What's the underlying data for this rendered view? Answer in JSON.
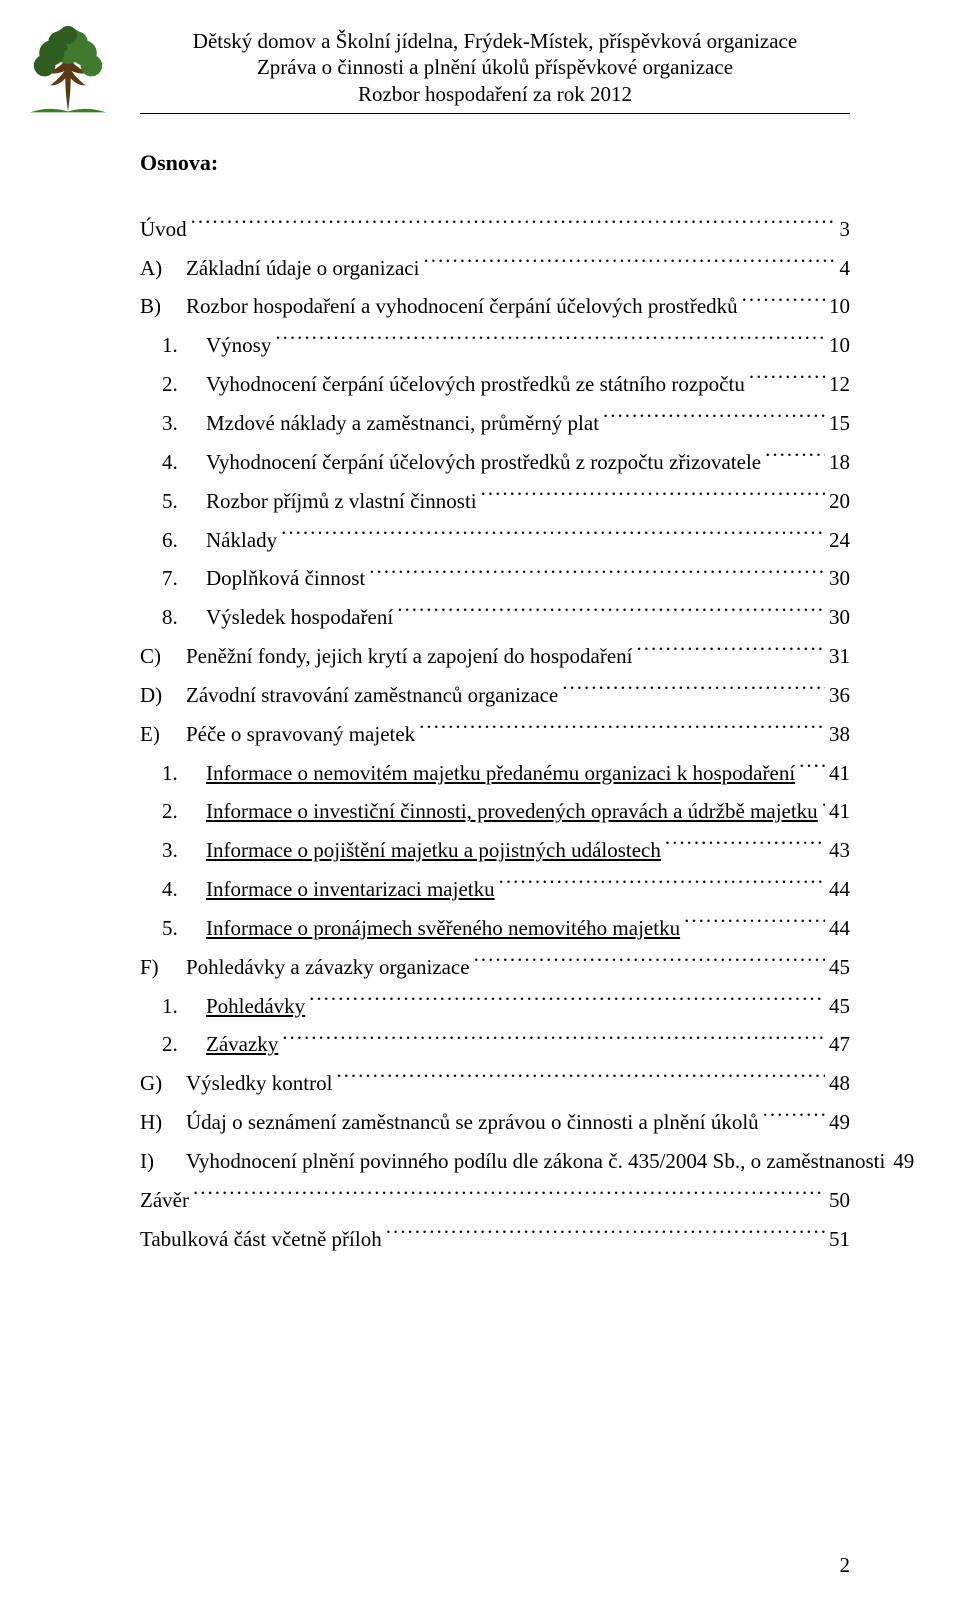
{
  "header": {
    "line1": "Dětský domov a Školní jídelna, Frýdek-Místek, příspěvková organizace",
    "line2": "Zpráva o činnosti a plnění úkolů příspěvkové organizace",
    "line3": "Rozbor hospodaření za rok 2012"
  },
  "logo": {
    "trunk_color": "#5a3a14",
    "canopy_color": "#3f7a2e",
    "canopy_dark": "#2e5d1f"
  },
  "section_title": "Osnova:",
  "toc": [
    {
      "level": "top",
      "marker": "",
      "text": "Úvod",
      "page": "3",
      "underline": false
    },
    {
      "level": "alpha",
      "marker": "A)",
      "text": "Základní údaje o organizaci",
      "page": "4",
      "underline": false
    },
    {
      "level": "alpha",
      "marker": "B)",
      "text": "Rozbor hospodaření a vyhodnocení čerpání účelových prostředků",
      "page": "10",
      "underline": false
    },
    {
      "level": "num",
      "marker": "1.",
      "text": "Výnosy",
      "page": "10",
      "underline": false
    },
    {
      "level": "num",
      "marker": "2.",
      "text": "Vyhodnocení čerpání účelových prostředků ze státního rozpočtu",
      "page": "12",
      "underline": false
    },
    {
      "level": "num",
      "marker": "3.",
      "text": "Mzdové náklady a zaměstnanci, průměrný plat",
      "page": "15",
      "underline": false
    },
    {
      "level": "num",
      "marker": "4.",
      "text": "Vyhodnocení čerpání účelových prostředků z rozpočtu zřizovatele",
      "page": "18",
      "underline": false
    },
    {
      "level": "num",
      "marker": "5.",
      "text": "Rozbor příjmů z vlastní činnosti",
      "page": "20",
      "underline": false
    },
    {
      "level": "num",
      "marker": "6.",
      "text": "Náklady",
      "page": "24",
      "underline": false
    },
    {
      "level": "num",
      "marker": "7.",
      "text": "Doplňková činnost",
      "page": "30",
      "underline": false
    },
    {
      "level": "num",
      "marker": "8.",
      "text": "Výsledek hospodaření",
      "page": "30",
      "underline": false
    },
    {
      "level": "alpha",
      "marker": "C)",
      "text": "Peněžní fondy, jejich krytí a zapojení do hospodaření",
      "page": "31",
      "underline": false
    },
    {
      "level": "alpha",
      "marker": "D)",
      "text": "Závodní stravování zaměstnanců organizace",
      "page": "36",
      "underline": false
    },
    {
      "level": "alpha",
      "marker": "E)",
      "text": "Péče o spravovaný majetek",
      "page": "38",
      "underline": false
    },
    {
      "level": "num",
      "marker": "1.",
      "text": "Informace o nemovitém majetku předanému organizaci k hospodaření",
      "page": "41",
      "underline": true
    },
    {
      "level": "num",
      "marker": "2.",
      "text": "Informace o investiční činnosti, provedených opravách a údržbě majetku",
      "page": "41",
      "underline": true
    },
    {
      "level": "num",
      "marker": "3.",
      "text": "Informace o pojištění majetku a pojistných událostech",
      "page": "43",
      "underline": true
    },
    {
      "level": "num",
      "marker": "4.",
      "text": "Informace o inventarizaci majetku",
      "page": "44",
      "underline": true
    },
    {
      "level": "num",
      "marker": "5.",
      "text": "Informace o pronájmech svěřeného nemovitého majetku",
      "page": "44",
      "underline": true
    },
    {
      "level": "alpha",
      "marker": "F)",
      "text": "Pohledávky a závazky organizace",
      "page": "45",
      "underline": false
    },
    {
      "level": "num",
      "marker": "1.",
      "text": "Pohledávky",
      "page": "45",
      "underline": true
    },
    {
      "level": "num",
      "marker": "2.",
      "text": "Závazky",
      "page": "47",
      "underline": true
    },
    {
      "level": "alpha",
      "marker": "G)",
      "text": "Výsledky kontrol",
      "page": "48",
      "underline": false
    },
    {
      "level": "alpha",
      "marker": "H)",
      "text": "Údaj o seznámení zaměstnanců se zprávou o činnosti a plnění úkolů",
      "page": "49",
      "underline": false
    },
    {
      "level": "alpha",
      "marker": "I)",
      "text": "Vyhodnocení plnění povinného podílu dle zákona č. 435/2004 Sb., o zaměstnanosti",
      "page": "49",
      "underline": false
    },
    {
      "level": "top",
      "marker": "",
      "text": "Závěr",
      "page": "50",
      "underline": false
    },
    {
      "level": "top",
      "marker": "",
      "text": "Tabulková část včetně příloh",
      "page": "51",
      "underline": false
    }
  ],
  "page_number": "2"
}
